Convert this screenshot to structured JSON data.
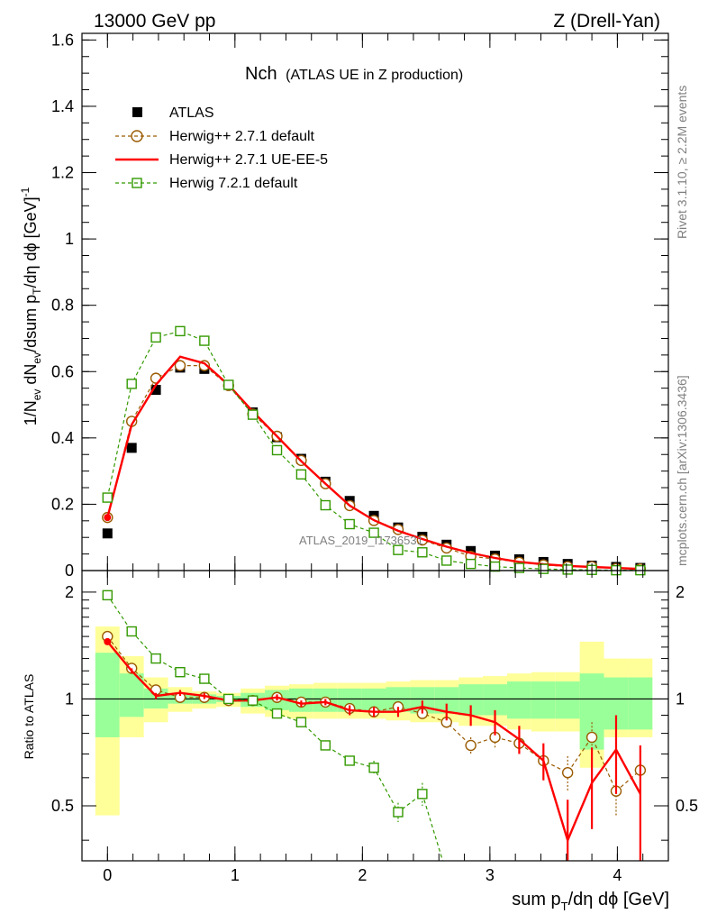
{
  "header": {
    "left": "13000 GeV pp",
    "right": "Z (Drell-Yan)"
  },
  "side_text": {
    "rivet": "Rivet 3.1.10, ≥ 2.2M events",
    "mcplots": "mcplots.cern.ch [arXiv:1306.3436]"
  },
  "chart_data": {
    "type": "scatter",
    "title_main": "Nch",
    "title_sub": "(ATLAS UE in Z production)",
    "watermark": "ATLAS_2019_I1736531",
    "xlabel_parts": {
      "a": "sum p",
      "sub": "T",
      "b": "/dη dϕ [GeV]"
    },
    "ylabel_top_parts": {
      "a": "1/N",
      "sub1": "ev",
      "b": " dN",
      "sub2": "ev",
      "c": "/dsum p",
      "sub3": "T",
      "d": "/dη dϕ  [GeV]",
      "sup": "-1"
    },
    "ylabel_bottom": "Ratio to ATLAS",
    "xlim": [
      -0.2,
      4.4
    ],
    "ylim_top": [
      0,
      1.62
    ],
    "ylim_bottom": [
      0.35,
      2.3
    ],
    "x_ticks": [
      "0",
      "1",
      "2",
      "3",
      "4"
    ],
    "y_ticks_top": [
      "0",
      "0.2",
      "0.4",
      "0.6",
      "0.8",
      "1",
      "1.2",
      "1.4",
      "1.6"
    ],
    "y_ticks_bottom": [
      "0.5",
      "1",
      "2"
    ],
    "legend": [
      "ATLAS",
      "Herwig++ 2.7.1 default",
      "Herwig++ 2.7.1 UE-EE-5",
      "Herwig 7.2.1 default"
    ],
    "x": [
      0.0,
      0.19,
      0.38,
      0.57,
      0.76,
      0.95,
      1.14,
      1.33,
      1.52,
      1.71,
      1.9,
      2.09,
      2.28,
      2.47,
      2.66,
      2.85,
      3.04,
      3.23,
      3.42,
      3.61,
      3.8,
      3.99,
      4.18
    ],
    "atlas": [
      0.112,
      0.37,
      0.545,
      0.612,
      0.608,
      0.56,
      0.477,
      0.402,
      0.337,
      0.268,
      0.21,
      0.165,
      0.13,
      0.102,
      0.078,
      0.059,
      0.045,
      0.034,
      0.026,
      0.02,
      0.015,
      0.011,
      0.008
    ],
    "band_inner": [
      [
        0.78,
        1.35
      ],
      [
        0.89,
        1.18
      ],
      [
        0.94,
        1.07
      ],
      [
        0.97,
        1.04
      ],
      [
        0.97,
        1.03
      ],
      [
        0.98,
        1.02
      ],
      [
        0.95,
        1.04
      ],
      [
        0.93,
        1.06
      ],
      [
        0.92,
        1.07
      ],
      [
        0.92,
        1.07
      ],
      [
        0.92,
        1.07
      ],
      [
        0.92,
        1.07
      ],
      [
        0.92,
        1.08
      ],
      [
        0.91,
        1.08
      ],
      [
        0.91,
        1.08
      ],
      [
        0.9,
        1.1
      ],
      [
        0.9,
        1.1
      ],
      [
        0.88,
        1.12
      ],
      [
        0.88,
        1.12
      ],
      [
        0.88,
        1.12
      ],
      [
        0.72,
        1.18
      ],
      [
        0.82,
        1.15
      ],
      [
        0.82,
        1.15
      ]
    ],
    "band_outer": [
      [
        0.47,
        1.6
      ],
      [
        0.78,
        1.32
      ],
      [
        0.86,
        1.15
      ],
      [
        0.92,
        1.08
      ],
      [
        0.94,
        1.05
      ],
      [
        0.95,
        1.04
      ],
      [
        0.91,
        1.07
      ],
      [
        0.89,
        1.09
      ],
      [
        0.88,
        1.1
      ],
      [
        0.88,
        1.11
      ],
      [
        0.88,
        1.11
      ],
      [
        0.88,
        1.11
      ],
      [
        0.87,
        1.12
      ],
      [
        0.86,
        1.13
      ],
      [
        0.86,
        1.13
      ],
      [
        0.84,
        1.15
      ],
      [
        0.84,
        1.16
      ],
      [
        0.82,
        1.18
      ],
      [
        0.81,
        1.19
      ],
      [
        0.81,
        1.19
      ],
      [
        0.64,
        1.45
      ],
      [
        0.78,
        1.3
      ],
      [
        0.78,
        1.3
      ]
    ],
    "series": [
      {
        "name": "Herwig++ 2.7.1 default",
        "color": "#9a5a00",
        "values": [
          0.16,
          0.45,
          0.58,
          0.618,
          0.618,
          0.558,
          0.472,
          0.405,
          0.332,
          0.262,
          0.196,
          0.151,
          0.124,
          0.092,
          0.068,
          0.043,
          0.035,
          0.025,
          0.017,
          0.012,
          0.012,
          0.006,
          0.005
        ],
        "ratio": [
          1.5,
          1.22,
          1.06,
          1.01,
          1.01,
          0.99,
          0.99,
          1.01,
          0.98,
          0.98,
          0.94,
          0.92,
          0.95,
          0.91,
          0.86,
          0.74,
          0.78,
          0.75,
          0.67,
          0.62,
          0.78,
          0.55,
          0.63
        ],
        "ratio_err": [
          0.02,
          0.02,
          0.01,
          0.01,
          0.01,
          0.01,
          0.01,
          0.01,
          0.02,
          0.02,
          0.02,
          0.02,
          0.02,
          0.03,
          0.04,
          0.04,
          0.05,
          0.05,
          0.06,
          0.07,
          0.08,
          0.08,
          0.09
        ]
      },
      {
        "name": "Herwig++ 2.7.1 UE-EE-5",
        "color": "#ff0000",
        "values": [
          0.16,
          0.44,
          0.56,
          0.645,
          0.625,
          0.56,
          0.48,
          0.405,
          0.33,
          0.262,
          0.196,
          0.152,
          0.12,
          0.095,
          0.072,
          0.053,
          0.038,
          0.026,
          0.019,
          0.014,
          0.011,
          0.008,
          0.005
        ],
        "ratio": [
          1.45,
          1.2,
          1.02,
          1.04,
          1.02,
          0.99,
          0.99,
          1.01,
          0.97,
          0.98,
          0.93,
          0.92,
          0.92,
          0.95,
          0.92,
          0.9,
          0.86,
          0.77,
          0.67,
          0.4,
          0.58,
          0.72,
          0.54
        ],
        "ratio_err": [
          0.03,
          0.02,
          0.02,
          0.02,
          0.02,
          0.01,
          0.02,
          0.02,
          0.02,
          0.02,
          0.03,
          0.03,
          0.03,
          0.04,
          0.05,
          0.06,
          0.07,
          0.07,
          0.08,
          0.12,
          0.15,
          0.18,
          0.2
        ]
      },
      {
        "name": "Herwig 7.2.1 default",
        "color": "#339900",
        "values": [
          0.22,
          0.563,
          0.703,
          0.722,
          0.693,
          0.56,
          0.47,
          0.363,
          0.29,
          0.197,
          0.14,
          0.114,
          0.062,
          0.055,
          0.03,
          0.02,
          0.012,
          0.008,
          0.005,
          0.003,
          0.002,
          0.001,
          0.001
        ],
        "ratio": [
          1.96,
          1.55,
          1.3,
          1.19,
          1.14,
          1.0,
          0.99,
          0.91,
          0.86,
          0.74,
          0.67,
          0.64,
          0.48,
          0.54
        ],
        "ratio_err": [
          0.02,
          0.02,
          0.02,
          0.02,
          0.02,
          0.02,
          0.02,
          0.02,
          0.02,
          0.02,
          0.02,
          0.03,
          0.03,
          0.04
        ]
      }
    ]
  }
}
